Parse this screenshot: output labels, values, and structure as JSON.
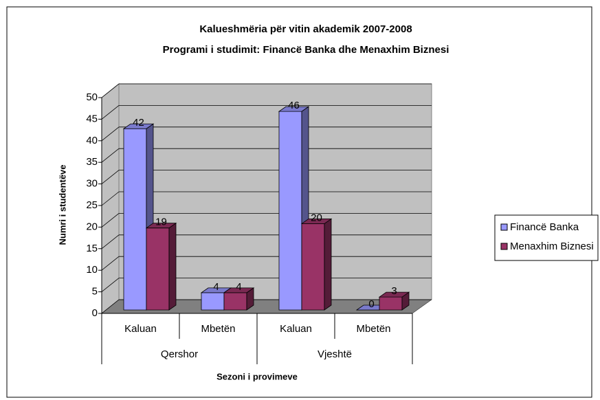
{
  "chart_data": {
    "type": "bar3d",
    "title": [
      "Kalueshmëria për vitin akademik 2007-2008",
      "Programi i studimit: Financë Banka dhe Menaxhim Biznesi"
    ],
    "categories": [
      "Kaluan",
      "Mbetën",
      "Kaluan",
      "Mbetën"
    ],
    "groups": [
      "Qershor",
      "Vjeshtë"
    ],
    "x_label": "Sezoni i provimeve",
    "y_label": "Numri i studentëve",
    "series": [
      {
        "name": "Financë Banka",
        "color": "#9999ff",
        "values": [
          42,
          4,
          46,
          0
        ]
      },
      {
        "name": "Menaxhim Biznesi",
        "color": "#993366",
        "values": [
          19,
          4,
          20,
          3
        ]
      }
    ],
    "ylim": [
      0,
      50
    ],
    "yticks": [
      0,
      5,
      10,
      15,
      20,
      25,
      30,
      35,
      40,
      45,
      50
    ],
    "grid": true,
    "legend": "right"
  }
}
